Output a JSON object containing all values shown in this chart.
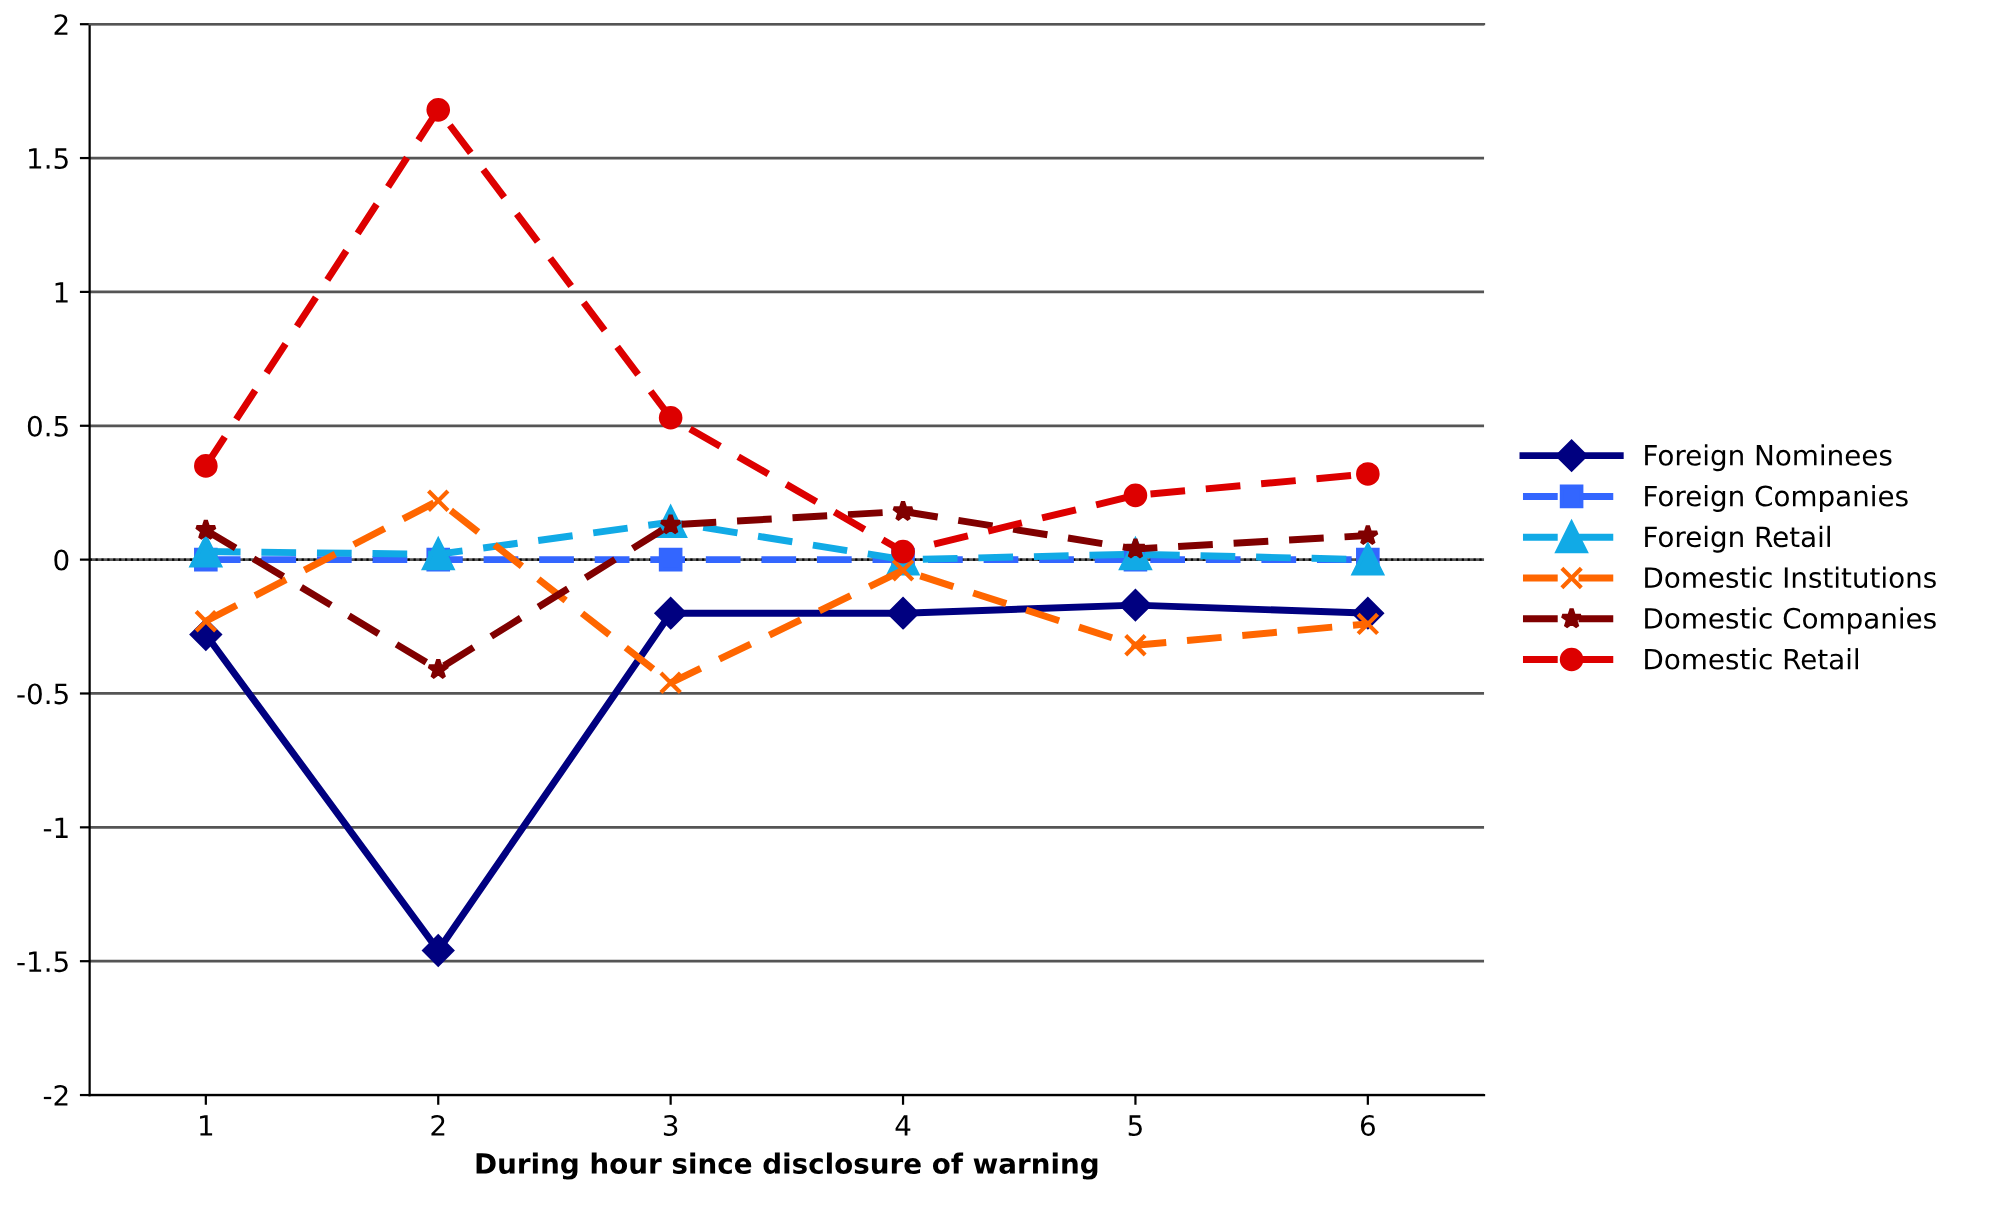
{
  "chart_data": {
    "type": "line",
    "xlabel": "During hour since disclosure of warning",
    "categories": [
      "1",
      "2",
      "3",
      "4",
      "5",
      "6"
    ],
    "ylim": [
      -2,
      2
    ],
    "yticks": [
      -2,
      -1.5,
      -1,
      -0.5,
      0,
      0.5,
      1,
      1.5,
      2
    ],
    "grid": "y",
    "legend": "right",
    "ref_lines": [
      {
        "axis": "y",
        "value": 0,
        "color": "#000000",
        "line_style": "dotted"
      }
    ],
    "series": [
      {
        "name": "Foreign Nominees",
        "color": "#000080",
        "marker": "diamond",
        "line_style": "solid",
        "values": [
          -0.28,
          -1.46,
          -0.2,
          -0.2,
          -0.17,
          -0.2
        ]
      },
      {
        "name": "Foreign Companies",
        "color": "#3366ff",
        "marker": "square",
        "line_style": "dashed",
        "values": [
          0.0,
          0.0,
          0.0,
          0.0,
          0.0,
          0.0
        ]
      },
      {
        "name": "Foreign Retail",
        "color": "#11aae6",
        "marker": "triangle",
        "line_style": "dashed",
        "values": [
          0.03,
          0.02,
          0.14,
          0.0,
          0.02,
          0.0
        ]
      },
      {
        "name": "Domestic Institutions",
        "color": "#ff6600",
        "marker": "cross",
        "line_style": "dashed",
        "values": [
          -0.23,
          0.22,
          -0.46,
          -0.04,
          -0.32,
          -0.24
        ]
      },
      {
        "name": "Domestic Companies",
        "color": "#800000",
        "marker": "star",
        "line_style": "dashed",
        "values": [
          0.11,
          -0.41,
          0.13,
          0.18,
          0.04,
          0.09
        ]
      },
      {
        "name": "Domestic Retail",
        "color": "#dd0000",
        "marker": "circle",
        "line_style": "dashed",
        "values": [
          0.35,
          1.68,
          0.53,
          0.03,
          0.24,
          0.32
        ]
      }
    ]
  }
}
